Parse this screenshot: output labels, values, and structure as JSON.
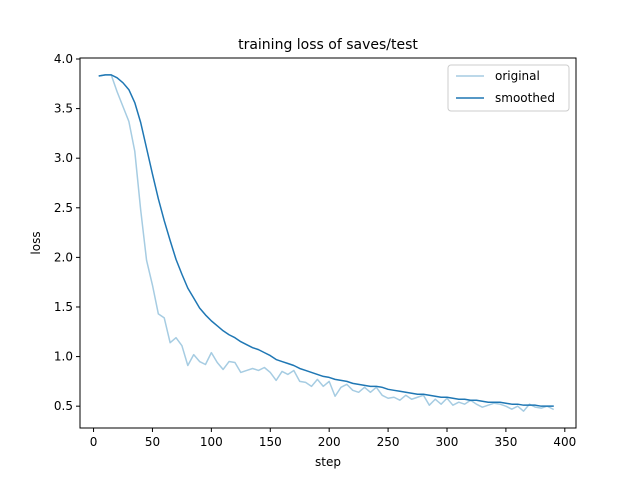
{
  "chart_data": {
    "type": "line",
    "title": "training loss of saves/test",
    "xlabel": "step",
    "ylabel": "loss",
    "xlim": [
      -11.5,
      409.5
    ],
    "ylim": [
      0.28,
      4.01
    ],
    "xticks": [
      0,
      50,
      100,
      150,
      200,
      250,
      300,
      350,
      400
    ],
    "yticks": [
      0.5,
      1.0,
      1.5,
      2.0,
      2.5,
      3.0,
      3.5,
      4.0
    ],
    "xtick_labels": [
      "0",
      "50",
      "100",
      "150",
      "200",
      "250",
      "300",
      "350",
      "400"
    ],
    "ytick_labels": [
      "0.5",
      "1.0",
      "1.5",
      "2.0",
      "2.5",
      "3.0",
      "3.5",
      "4.0"
    ],
    "legend_position": "top-right",
    "grid": false,
    "series": [
      {
        "name": "original",
        "color": "#a6cce2",
        "x": [
          5,
          10,
          15,
          20,
          25,
          30,
          35,
          40,
          45,
          50,
          55,
          60,
          65,
          70,
          75,
          80,
          85,
          90,
          95,
          100,
          105,
          110,
          115,
          120,
          125,
          130,
          135,
          140,
          145,
          150,
          155,
          160,
          165,
          170,
          175,
          180,
          185,
          190,
          195,
          200,
          205,
          210,
          215,
          220,
          225,
          230,
          235,
          240,
          245,
          250,
          255,
          260,
          265,
          270,
          275,
          280,
          285,
          290,
          295,
          300,
          305,
          310,
          315,
          320,
          325,
          330,
          335,
          340,
          345,
          350,
          355,
          360,
          365,
          370,
          375,
          380,
          385,
          390
        ],
        "y": [
          3.83,
          3.84,
          3.84,
          3.67,
          3.52,
          3.37,
          3.07,
          2.48,
          1.97,
          1.72,
          1.43,
          1.39,
          1.14,
          1.19,
          1.11,
          0.91,
          1.02,
          0.95,
          0.92,
          1.04,
          0.94,
          0.87,
          0.95,
          0.94,
          0.84,
          0.86,
          0.88,
          0.86,
          0.89,
          0.84,
          0.76,
          0.85,
          0.82,
          0.86,
          0.75,
          0.74,
          0.7,
          0.77,
          0.7,
          0.75,
          0.6,
          0.69,
          0.72,
          0.66,
          0.64,
          0.69,
          0.64,
          0.69,
          0.61,
          0.58,
          0.59,
          0.56,
          0.61,
          0.57,
          0.59,
          0.61,
          0.51,
          0.57,
          0.52,
          0.58,
          0.51,
          0.54,
          0.52,
          0.56,
          0.52,
          0.49,
          0.51,
          0.53,
          0.52,
          0.5,
          0.47,
          0.5,
          0.45,
          0.52,
          0.49,
          0.48,
          0.5,
          0.47
        ]
      },
      {
        "name": "smoothed",
        "color": "#1f77b4",
        "x": [
          5,
          10,
          15,
          20,
          25,
          30,
          35,
          40,
          45,
          50,
          55,
          60,
          65,
          70,
          75,
          80,
          85,
          90,
          95,
          100,
          105,
          110,
          115,
          120,
          125,
          130,
          135,
          140,
          145,
          150,
          155,
          160,
          165,
          170,
          175,
          180,
          185,
          190,
          195,
          200,
          205,
          210,
          215,
          220,
          225,
          230,
          235,
          240,
          245,
          250,
          255,
          260,
          265,
          270,
          275,
          280,
          285,
          290,
          295,
          300,
          305,
          310,
          315,
          320,
          325,
          330,
          335,
          340,
          345,
          350,
          355,
          360,
          365,
          370,
          375,
          380,
          385,
          390
        ],
        "y": [
          3.83,
          3.84,
          3.84,
          3.81,
          3.76,
          3.69,
          3.56,
          3.36,
          3.1,
          2.84,
          2.59,
          2.37,
          2.17,
          1.98,
          1.83,
          1.69,
          1.59,
          1.49,
          1.42,
          1.36,
          1.31,
          1.26,
          1.22,
          1.19,
          1.15,
          1.12,
          1.09,
          1.07,
          1.04,
          1.01,
          0.97,
          0.95,
          0.93,
          0.91,
          0.88,
          0.86,
          0.84,
          0.82,
          0.8,
          0.79,
          0.77,
          0.76,
          0.75,
          0.73,
          0.72,
          0.71,
          0.7,
          0.7,
          0.69,
          0.67,
          0.66,
          0.65,
          0.64,
          0.63,
          0.62,
          0.62,
          0.61,
          0.6,
          0.59,
          0.59,
          0.58,
          0.57,
          0.57,
          0.56,
          0.56,
          0.55,
          0.54,
          0.54,
          0.54,
          0.53,
          0.52,
          0.52,
          0.51,
          0.51,
          0.51,
          0.5,
          0.5,
          0.5
        ]
      }
    ]
  }
}
